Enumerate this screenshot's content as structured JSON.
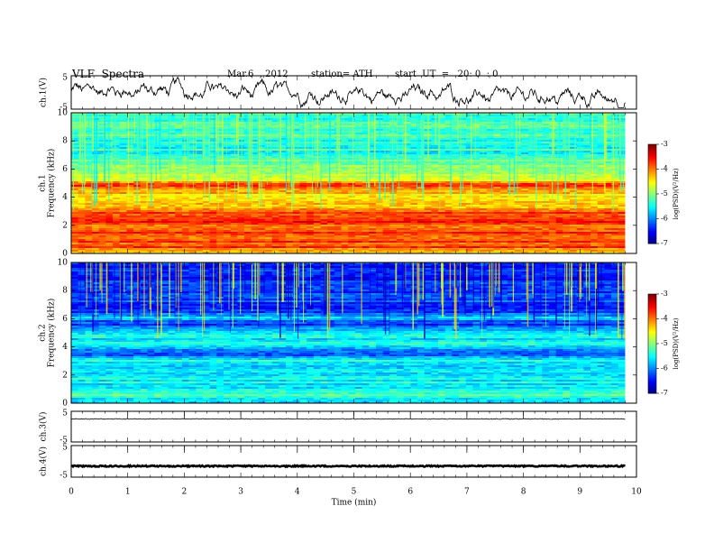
{
  "header": {
    "title": "VLF  Spectra",
    "date": "Mar.6  , 2012",
    "station": "station= ATH",
    "start": "start  UT  =   20: 0  : 0"
  },
  "chart_data": [
    {
      "type": "line",
      "id": "ch1",
      "ylabel": "ch.1(V)",
      "ylim": [
        -5,
        5
      ],
      "yticks": [
        "5",
        "-5"
      ],
      "description_values": {
        "mean": 0,
        "amplitude": 2.5
      }
    },
    {
      "type": "heatmap",
      "id": "ch1-spec",
      "ylabel": "ch.1\nFrequency (kHz)",
      "ylabel_lines": [
        "ch.1",
        "Frequency  (kHz)"
      ],
      "ylim": [
        0,
        10
      ],
      "yticks": [
        "0",
        "2",
        "4",
        "6",
        "8",
        "10"
      ],
      "colorbar": {
        "label": "log(PSD)(V²/Hz)",
        "range": [
          -7,
          -3
        ],
        "ticks": [
          "-3",
          "-4",
          "-5",
          "-6",
          "-7"
        ]
      },
      "profile": [
        [
          0.0,
          -4.3
        ],
        [
          0.5,
          -3.6
        ],
        [
          1.0,
          -4.0
        ],
        [
          1.5,
          -3.8
        ],
        [
          2.0,
          -3.9
        ],
        [
          2.5,
          -3.5
        ],
        [
          3.0,
          -4.0
        ],
        [
          3.5,
          -4.2
        ],
        [
          4.0,
          -4.3
        ],
        [
          4.5,
          -4.4
        ],
        [
          4.8,
          -3.4
        ],
        [
          5.0,
          -4.2
        ],
        [
          5.5,
          -4.8
        ],
        [
          6.0,
          -4.9
        ],
        [
          6.5,
          -5.0
        ],
        [
          7.0,
          -5.4
        ],
        [
          8.0,
          -5.3
        ],
        [
          9.0,
          -5.2
        ],
        [
          10.0,
          -5.3
        ]
      ]
    },
    {
      "type": "heatmap",
      "id": "ch2-spec",
      "ylabel_lines": [
        "ch.2",
        "Frequency  (kHz)"
      ],
      "ylim": [
        0,
        10
      ],
      "yticks": [
        "0",
        "2",
        "4",
        "6",
        "8",
        "10"
      ],
      "colorbar": {
        "label": "log(PSD)(V²/Hz)",
        "range": [
          -7,
          -3
        ],
        "ticks": [
          "-3",
          "-4",
          "-5",
          "-6",
          "-7"
        ]
      },
      "profile": [
        [
          0.0,
          -5.8
        ],
        [
          0.5,
          -5.2
        ],
        [
          1.0,
          -5.4
        ],
        [
          2.0,
          -5.6
        ],
        [
          3.0,
          -5.5
        ],
        [
          3.4,
          -6.3
        ],
        [
          4.0,
          -5.5
        ],
        [
          4.5,
          -5.6
        ],
        [
          5.0,
          -5.5
        ],
        [
          5.6,
          -6.5
        ],
        [
          6.0,
          -5.6
        ],
        [
          6.5,
          -6.3
        ],
        [
          7.0,
          -6.2
        ],
        [
          8.0,
          -6.4
        ],
        [
          9.0,
          -6.3
        ],
        [
          10.0,
          -6.4
        ]
      ]
    },
    {
      "type": "line",
      "id": "ch3",
      "ylabel": "ch.3(V)",
      "ylim": [
        -5,
        5
      ],
      "yticks": [
        "5",
        "-5"
      ],
      "level": 2.5
    },
    {
      "type": "line",
      "id": "ch4",
      "ylabel": "ch.4(V)",
      "ylim": [
        -5,
        5
      ],
      "yticks": [
        "5",
        "-5"
      ],
      "level": -1.5
    }
  ],
  "xaxis": {
    "label": "Time  (min)",
    "xlim": [
      0,
      10
    ],
    "ticks": [
      "0",
      "1",
      "2",
      "3",
      "4",
      "5",
      "6",
      "7",
      "8",
      "9",
      "10"
    ],
    "data_end": 9.8
  }
}
